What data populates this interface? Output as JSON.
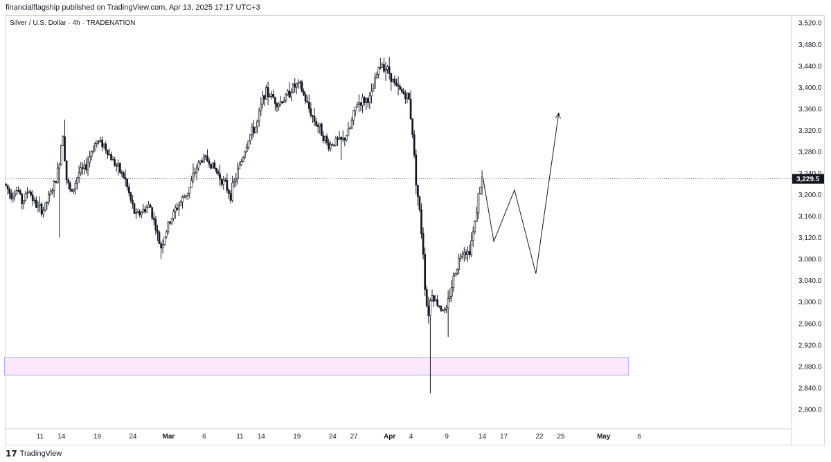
{
  "header": {
    "publisher_line": "financialflagship published on TradingView.com, Apr 13, 2025 17:17 UTC+3"
  },
  "footer": {
    "logo_glyph": "17",
    "brand": "TradingView"
  },
  "chart_data": {
    "type": "candlestick",
    "title": "Silver / U.S. Dollar · 4h · TRADENATION",
    "y_axis": {
      "range": [
        2770,
        3550
      ],
      "ticks": [
        "3,520.0",
        "3,480.0",
        "3,440.0",
        "3,400.0",
        "3,360.0",
        "3,320.0",
        "3,280.0",
        "3,240.0",
        "3,200.0",
        "3,160.0",
        "3,120.0",
        "3,080.0",
        "3,040.0",
        "3,000.0",
        "2,960.0",
        "2,920.0",
        "2,880.0",
        "2,840.0",
        "2,800.0"
      ],
      "tick_values": [
        3520,
        3480,
        3440,
        3400,
        3360,
        3320,
        3280,
        3240,
        3200,
        3160,
        3120,
        3080,
        3040,
        3000,
        2960,
        2920,
        2880,
        2840,
        2800
      ]
    },
    "x_axis": {
      "ticks": [
        {
          "label": "11",
          "day": 0,
          "bold": false
        },
        {
          "label": "14",
          "day": 3,
          "bold": false
        },
        {
          "label": "19",
          "day": 8,
          "bold": false
        },
        {
          "label": "24",
          "day": 13,
          "bold": false
        },
        {
          "label": "Mar",
          "day": 18,
          "bold": true
        },
        {
          "label": "6",
          "day": 23,
          "bold": false
        },
        {
          "label": "11",
          "day": 28,
          "bold": false
        },
        {
          "label": "14",
          "day": 31,
          "bold": false
        },
        {
          "label": "19",
          "day": 36,
          "bold": false
        },
        {
          "label": "24",
          "day": 41,
          "bold": false
        },
        {
          "label": "27",
          "day": 44,
          "bold": false
        },
        {
          "label": "Apr",
          "day": 49,
          "bold": true
        },
        {
          "label": "4",
          "day": 52,
          "bold": false
        },
        {
          "label": "9",
          "day": 57,
          "bold": false
        },
        {
          "label": "14",
          "day": 62,
          "bold": false
        },
        {
          "label": "17",
          "day": 65,
          "bold": false
        },
        {
          "label": "22",
          "day": 70,
          "bold": false
        },
        {
          "label": "25",
          "day": 73,
          "bold": false
        },
        {
          "label": "May",
          "day": 79,
          "bold": true
        },
        {
          "label": "6",
          "day": 84,
          "bold": false
        }
      ]
    },
    "last_price": {
      "value": 3229.5,
      "label": "3,229.5"
    },
    "price_path": [
      {
        "day": -4.8,
        "price": 3220
      },
      {
        "day": -4,
        "price": 3200
      },
      {
        "day": -3,
        "price": 3210
      },
      {
        "day": -2.4,
        "price": 3185
      },
      {
        "day": -1.5,
        "price": 3210
      },
      {
        "day": -0.5,
        "price": 3180
      },
      {
        "day": 0.5,
        "price": 3170
      },
      {
        "day": 1.5,
        "price": 3200
      },
      {
        "day": 2.3,
        "price": 3225
      },
      {
        "day": 2.8,
        "price": 3260
      },
      {
        "day": 3.3,
        "price": 3320
      },
      {
        "day": 3.8,
        "price": 3230
      },
      {
        "day": 4.5,
        "price": 3200
      },
      {
        "day": 5.5,
        "price": 3240
      },
      {
        "day": 6.5,
        "price": 3250
      },
      {
        "day": 7.3,
        "price": 3280
      },
      {
        "day": 8,
        "price": 3300
      },
      {
        "day": 9,
        "price": 3295
      },
      {
        "day": 10,
        "price": 3270
      },
      {
        "day": 11,
        "price": 3250
      },
      {
        "day": 12,
        "price": 3230
      },
      {
        "day": 12.8,
        "price": 3190
      },
      {
        "day": 13.5,
        "price": 3160
      },
      {
        "day": 14.5,
        "price": 3170
      },
      {
        "day": 15.5,
        "price": 3180
      },
      {
        "day": 16.3,
        "price": 3140
      },
      {
        "day": 17,
        "price": 3100
      },
      {
        "day": 18,
        "price": 3140
      },
      {
        "day": 19,
        "price": 3170
      },
      {
        "day": 20,
        "price": 3190
      },
      {
        "day": 21,
        "price": 3210
      },
      {
        "day": 22,
        "price": 3250
      },
      {
        "day": 23,
        "price": 3270
      },
      {
        "day": 24,
        "price": 3260
      },
      {
        "day": 25,
        "price": 3240
      },
      {
        "day": 26,
        "price": 3220
      },
      {
        "day": 26.8,
        "price": 3200
      },
      {
        "day": 27.5,
        "price": 3230
      },
      {
        "day": 28.5,
        "price": 3270
      },
      {
        "day": 29.5,
        "price": 3310
      },
      {
        "day": 30.5,
        "price": 3330
      },
      {
        "day": 31.5,
        "price": 3390
      },
      {
        "day": 32.5,
        "price": 3385
      },
      {
        "day": 33.5,
        "price": 3370
      },
      {
        "day": 34.5,
        "price": 3380
      },
      {
        "day": 35.5,
        "price": 3400
      },
      {
        "day": 36.5,
        "price": 3405
      },
      {
        "day": 37.5,
        "price": 3370
      },
      {
        "day": 38.5,
        "price": 3340
      },
      {
        "day": 39.5,
        "price": 3320
      },
      {
        "day": 40.5,
        "price": 3290
      },
      {
        "day": 41.5,
        "price": 3300
      },
      {
        "day": 42.5,
        "price": 3300
      },
      {
        "day": 43.5,
        "price": 3320
      },
      {
        "day": 44.5,
        "price": 3370
      },
      {
        "day": 45.5,
        "price": 3375
      },
      {
        "day": 46.5,
        "price": 3380
      },
      {
        "day": 47.2,
        "price": 3420
      },
      {
        "day": 48,
        "price": 3445
      },
      {
        "day": 49,
        "price": 3430
      },
      {
        "day": 50,
        "price": 3400
      },
      {
        "day": 51,
        "price": 3390
      },
      {
        "day": 51.8,
        "price": 3380
      },
      {
        "day": 52.3,
        "price": 3320
      },
      {
        "day": 52.8,
        "price": 3230
      },
      {
        "day": 53.3,
        "price": 3170
      },
      {
        "day": 53.8,
        "price": 3100
      },
      {
        "day": 54.2,
        "price": 3000
      },
      {
        "day": 54.6,
        "price": 2980
      },
      {
        "day": 55,
        "price": 3020
      },
      {
        "day": 55.6,
        "price": 3000
      },
      {
        "day": 56.3,
        "price": 2990
      },
      {
        "day": 57,
        "price": 2980
      },
      {
        "day": 57.8,
        "price": 3030
      },
      {
        "day": 58.6,
        "price": 3070
      },
      {
        "day": 59.4,
        "price": 3100
      },
      {
        "day": 60.2,
        "price": 3090
      },
      {
        "day": 61,
        "price": 3140
      },
      {
        "day": 61.6,
        "price": 3200
      },
      {
        "day": 62,
        "price": 3229.5
      }
    ],
    "wick_extremes": [
      {
        "day": 2.6,
        "price": 3120
      },
      {
        "day": 3.5,
        "price": 3340
      },
      {
        "day": 17,
        "price": 3080
      },
      {
        "day": 47.8,
        "price": 3455
      },
      {
        "day": 54.8,
        "price": 2830
      },
      {
        "day": 54.6,
        "price": 2910
      },
      {
        "day": 57.2,
        "price": 2935
      },
      {
        "day": 42.2,
        "price": 3265
      }
    ],
    "projection_path": [
      {
        "day": 62.1,
        "price": 3230
      },
      {
        "day": 63.6,
        "price": 3113
      },
      {
        "day": 66.5,
        "price": 3209
      },
      {
        "day": 69.5,
        "price": 3053
      },
      {
        "day": 72.7,
        "price": 3352
      }
    ],
    "demand_zone": {
      "day_start": -5,
      "day_end": 82.5,
      "price_top": 2897,
      "price_bottom": 2864,
      "fill": "#fce8fd",
      "stroke": "#a6b3f0"
    },
    "colors": {
      "candle": "#131722",
      "grid": "#f0f3fa",
      "axis_text": "#131722",
      "price_label_bg": "#131722",
      "price_label_text": "#ffffff"
    },
    "grid": false
  }
}
